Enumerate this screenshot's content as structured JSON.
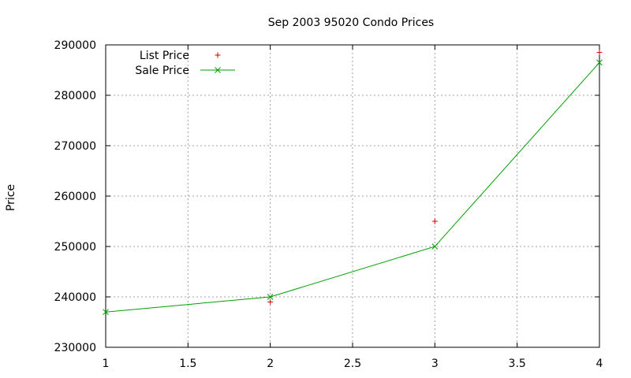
{
  "chart_data": {
    "type": "line",
    "title": "Sep 2003 95020 Condo Prices",
    "xlabel": "",
    "ylabel": "Price",
    "xlim": [
      1,
      4
    ],
    "ylim": [
      230000,
      290000
    ],
    "xticks": [
      "1",
      "1.5",
      "2",
      "2.5",
      "3",
      "3.5",
      "4"
    ],
    "yticks": [
      "230000",
      "240000",
      "250000",
      "260000",
      "270000",
      "280000",
      "290000"
    ],
    "grid": true,
    "legend_position": "top-left",
    "series": [
      {
        "name": "List Price",
        "style": "points",
        "marker": "plus",
        "color": "#cc0000",
        "x": [
          2,
          3,
          4
        ],
        "values": [
          239000,
          255000,
          288500
        ]
      },
      {
        "name": "Sale Price",
        "style": "linespoints",
        "marker": "cross",
        "color": "#00a000",
        "x": [
          1,
          2,
          3,
          4
        ],
        "values": [
          237000,
          240000,
          250000,
          286500
        ]
      }
    ]
  }
}
